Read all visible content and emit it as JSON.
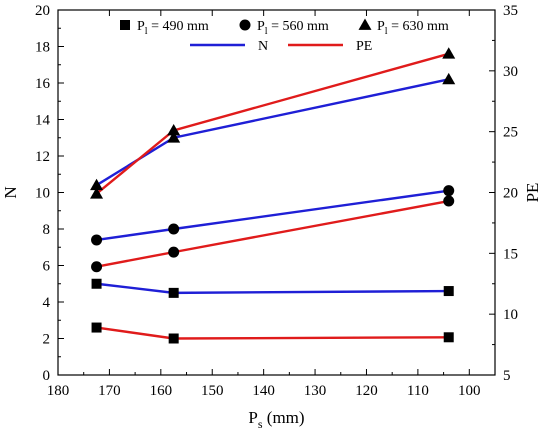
{
  "chart_data": {
    "type": "line",
    "x_axis": {
      "label_main": "P",
      "label_sub": "s",
      "label_unit": " (mm)",
      "range": [
        180,
        95
      ],
      "reversed": true,
      "ticks": [
        180,
        170,
        160,
        150,
        140,
        130,
        120,
        110,
        100
      ]
    },
    "y_left": {
      "label": "N",
      "range": [
        0,
        20
      ],
      "ticks": [
        0,
        2,
        4,
        6,
        8,
        10,
        12,
        14,
        16,
        18,
        20
      ]
    },
    "y_right": {
      "label": "PE",
      "range": [
        5,
        35
      ],
      "ticks": [
        5,
        10,
        15,
        20,
        25,
        30,
        35
      ]
    },
    "groups": [
      {
        "legend_main": "P",
        "legend_sub": "l",
        "legend_rest": " = 490 mm",
        "marker": "square",
        "x": [
          172.5,
          157.5,
          104
        ],
        "N": [
          5.0,
          4.5,
          4.6
        ],
        "PE": [
          8.9,
          8.0,
          8.1
        ]
      },
      {
        "legend_main": "P",
        "legend_sub": "l",
        "legend_rest": " = 560 mm",
        "marker": "circle",
        "x": [
          172.5,
          157.5,
          104
        ],
        "N": [
          7.4,
          8.0,
          10.1
        ],
        "PE": [
          13.9,
          15.1,
          19.3
        ]
      },
      {
        "legend_main": "P",
        "legend_sub": "l",
        "legend_rest": " = 630 mm",
        "marker": "triangle",
        "x": [
          172.5,
          157.5,
          104
        ],
        "N": [
          10.4,
          13.0,
          16.2
        ],
        "PE": [
          19.9,
          25.1,
          31.4
        ]
      }
    ],
    "series": [
      {
        "name": "N",
        "axis": "left",
        "color": "#1f1fd6"
      },
      {
        "name": "PE",
        "axis": "right",
        "color": "#e01b1b"
      }
    ],
    "legend_placement": "top-center",
    "grid": false
  }
}
